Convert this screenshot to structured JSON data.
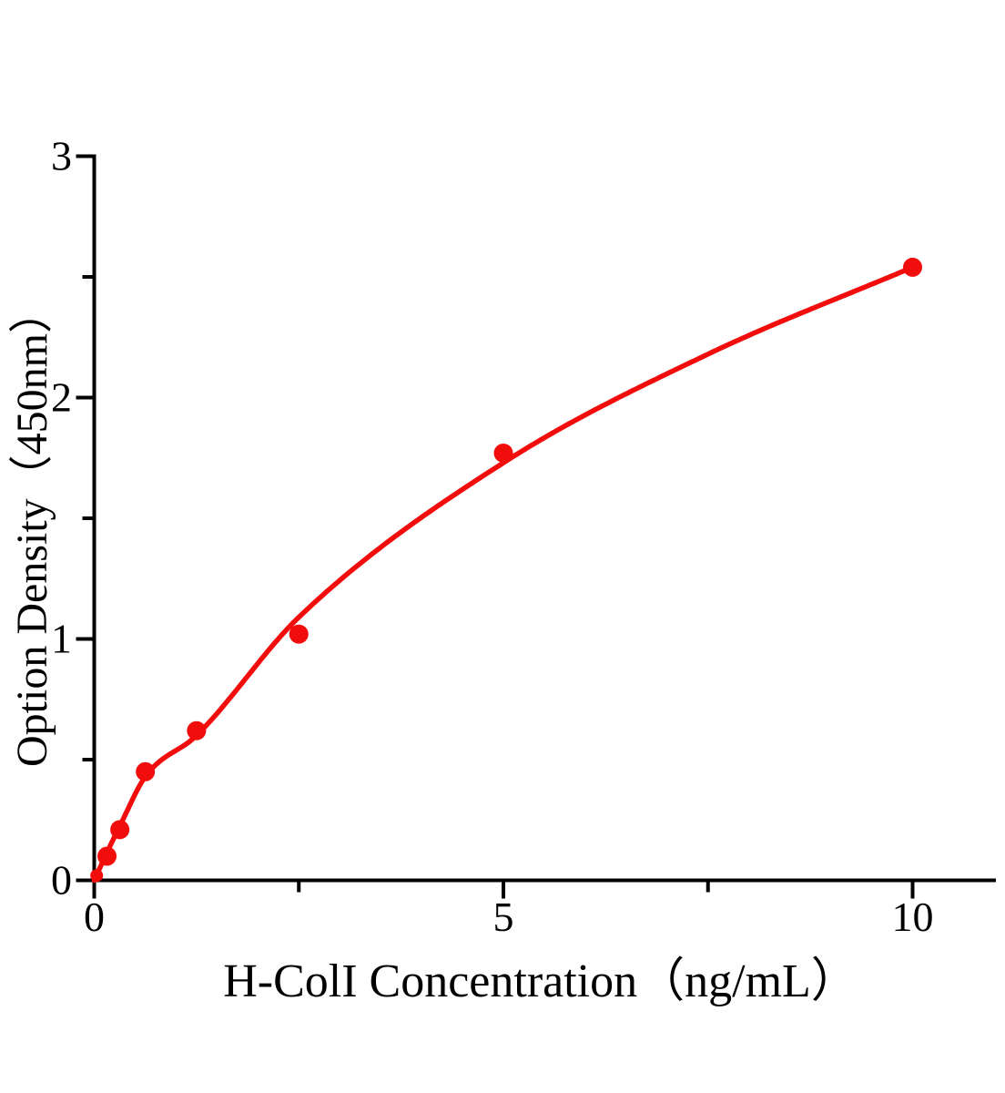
{
  "figure": {
    "background": "#ffffff",
    "text_color": "#000000"
  },
  "chart_data": {
    "type": "scatter",
    "title": "",
    "xlabel": "H-ColI Concentration（ng/mL）",
    "ylabel": "Option Density（450nm）",
    "xlim": [
      0,
      11.0
    ],
    "ylim": [
      0,
      3
    ],
    "x_ticks": [
      0,
      5,
      10
    ],
    "x_minor_ticks": [
      2.5,
      7.5
    ],
    "y_ticks": [
      0,
      1,
      2,
      3
    ],
    "y_minor_ticks": [
      0.5,
      1.5,
      2.5
    ],
    "grid": false,
    "legend": "none",
    "axis_color": "#000000",
    "marker_color": "#f20d0d",
    "line_color": "#f20d0d",
    "points": [
      {
        "x": 0.03,
        "y": 0.02
      },
      {
        "x": 0.156,
        "y": 0.1
      },
      {
        "x": 0.313,
        "y": 0.21
      },
      {
        "x": 0.625,
        "y": 0.45
      },
      {
        "x": 1.25,
        "y": 0.62
      },
      {
        "x": 2.5,
        "y": 1.02
      },
      {
        "x": 5,
        "y": 1.77
      },
      {
        "x": 10,
        "y": 2.54
      }
    ],
    "fit_curve": [
      {
        "x": 0,
        "y": 0
      },
      {
        "x": 0.156,
        "y": 0.115
      },
      {
        "x": 0.313,
        "y": 0.225
      },
      {
        "x": 0.625,
        "y": 0.43
      },
      {
        "x": 1.25,
        "y": 0.6
      },
      {
        "x": 2.5,
        "y": 1.09
      },
      {
        "x": 5,
        "y": 1.73
      },
      {
        "x": 7.5,
        "y": 2.18
      },
      {
        "x": 10,
        "y": 2.54
      }
    ]
  }
}
